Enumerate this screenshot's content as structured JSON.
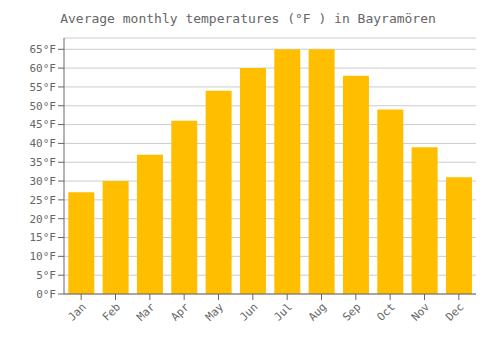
{
  "chart_data": {
    "type": "bar",
    "title": "Average monthly temperatures (°F ) in Bayramören",
    "categories": [
      "Jan",
      "Feb",
      "Mar",
      "Apr",
      "May",
      "Jun",
      "Jul",
      "Aug",
      "Sep",
      "Oct",
      "Nov",
      "Dec"
    ],
    "values": [
      27,
      30,
      37,
      46,
      54,
      60,
      65,
      65,
      58,
      49,
      39,
      31
    ],
    "color": "#FFBF00",
    "ylim": [
      0,
      68
    ],
    "yticks": [
      {
        "value": 0,
        "label": "0°F"
      },
      {
        "value": 5,
        "label": "5°F"
      },
      {
        "value": 10,
        "label": "10°F"
      },
      {
        "value": 15,
        "label": "15°F"
      },
      {
        "value": 20,
        "label": "20°F"
      },
      {
        "value": 25,
        "label": "25°F"
      },
      {
        "value": 30,
        "label": "30°F"
      },
      {
        "value": 35,
        "label": "35°F"
      },
      {
        "value": 40,
        "label": "40°F"
      },
      {
        "value": 45,
        "label": "45°F"
      },
      {
        "value": 50,
        "label": "50°F"
      },
      {
        "value": 55,
        "label": "55°F"
      },
      {
        "value": 60,
        "label": "60°F"
      },
      {
        "value": 65,
        "label": "65°F"
      }
    ],
    "grid": true
  }
}
